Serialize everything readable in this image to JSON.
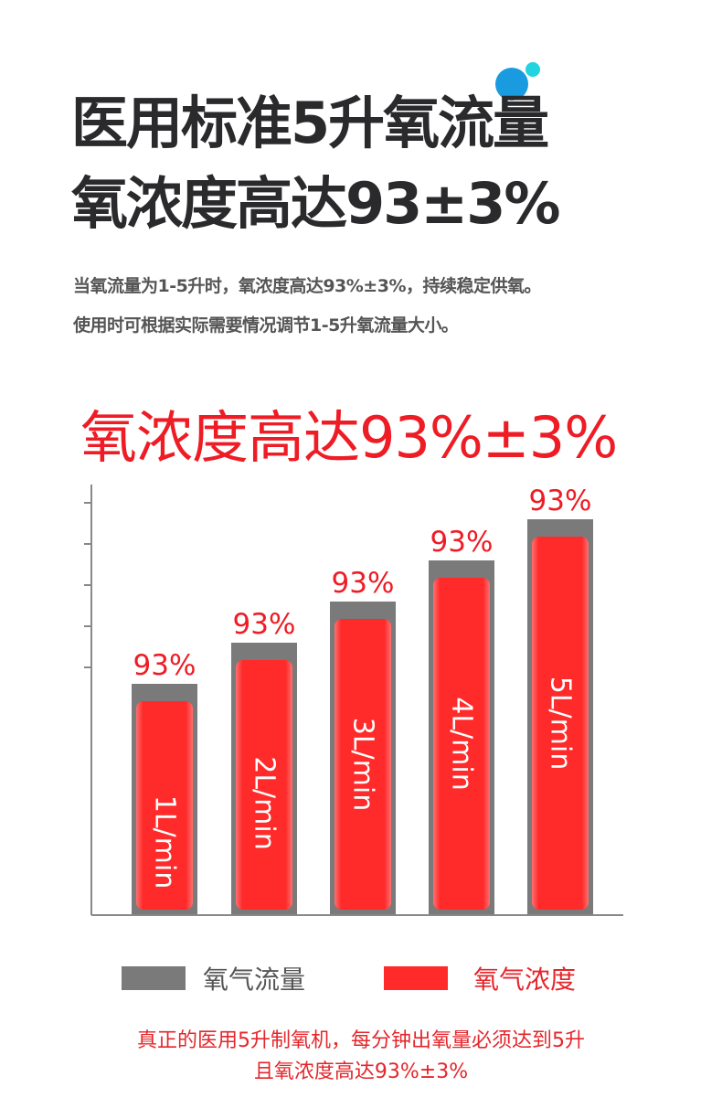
{
  "header": {
    "title_line1": "医用标准5升氧流量",
    "title_line2": "氧浓度高达93±3%",
    "desc_line1": "当氧流量为1-5升时，氧浓度高达93%±3%，持续稳定供氧。",
    "desc_line2": "使用时可根据实际需要情况调节1-5升氧流量大小。",
    "accent_dots": [
      "#1a9be0",
      "#22d3e0"
    ]
  },
  "chart_data": {
    "type": "bar",
    "title": "氧浓度高达93%±3%",
    "categories": [
      "1L/min",
      "2L/min",
      "3L/min",
      "4L/min",
      "5L/min"
    ],
    "series": [
      {
        "name": "氧气流量",
        "values": [
          1,
          2,
          3,
          4,
          5
        ],
        "unit": "L/min",
        "color": "#7a7a7a"
      },
      {
        "name": "氧气浓度",
        "values": [
          93,
          93,
          93,
          93,
          93
        ],
        "unit": "%",
        "color": "#ff2a2a"
      }
    ],
    "data_labels": [
      "93%",
      "93%",
      "93%",
      "93%",
      "93%"
    ],
    "grid": false,
    "legend_position": "bottom"
  },
  "legend": {
    "items": [
      {
        "label": "氧气流量",
        "color": "#7a7a7a"
      },
      {
        "label": "氧气浓度",
        "color": "#ff2a2a"
      }
    ]
  },
  "footer": {
    "line1": "真正的医用5升制氧机，每分钟出氧量必须达到5升",
    "line2": "且氧浓度高达93%±3%"
  }
}
